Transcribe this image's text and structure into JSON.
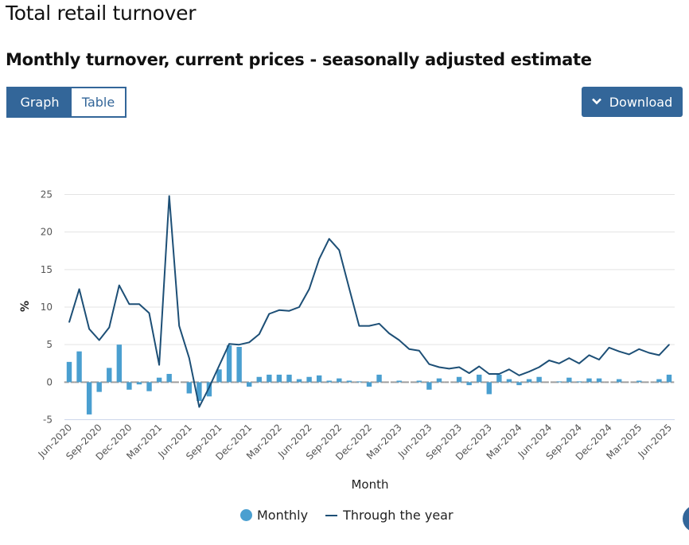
{
  "page": {
    "title": "Total retail turnover",
    "subtitle": "Monthly turnover, current prices - seasonally adjusted estimate"
  },
  "toggle": {
    "graph_label": "Graph",
    "table_label": "Table",
    "selected": "Graph"
  },
  "download": {
    "label": "Download",
    "icon": "chevron-down-icon"
  },
  "colors": {
    "brand": "#336699",
    "monthly": "#4a9fd0",
    "through_the_year": "#1d4f76",
    "zero_marker": "#9e9e9e",
    "grid": "#e3e3e3"
  },
  "chart_data": {
    "type": "bar",
    "title": "Monthly turnover, current prices - seasonally adjusted estimate",
    "xlabel": "Month",
    "ylabel": "%",
    "ylim": [
      -5,
      25
    ],
    "yticks": [
      "-5",
      "0",
      "5",
      "10",
      "15",
      "20",
      "25"
    ],
    "ytick_values": [
      -5,
      0,
      5,
      10,
      15,
      20,
      25
    ],
    "grid": true,
    "legend_position": "bottom",
    "xtick_labels": [
      "Jun-2020",
      "Sep-2020",
      "Dec-2020",
      "Mar-2021",
      "Jun-2021",
      "Sep-2021",
      "Dec-2021",
      "Mar-2022",
      "Jun-2022",
      "Sep-2022",
      "Dec-2022",
      "Mar-2023",
      "Jun-2023",
      "Sep-2023",
      "Dec-2023",
      "Mar-2024",
      "Jun-2024",
      "Sep-2024",
      "Dec-2024",
      "Mar-2025",
      "Jun-2025"
    ],
    "x": [
      "Jun-2020",
      "Jul-2020",
      "Aug-2020",
      "Sep-2020",
      "Oct-2020",
      "Nov-2020",
      "Dec-2020",
      "Jan-2021",
      "Feb-2021",
      "Mar-2021",
      "Apr-2021",
      "May-2021",
      "Jun-2021",
      "Jul-2021",
      "Aug-2021",
      "Sep-2021",
      "Oct-2021",
      "Nov-2021",
      "Dec-2021",
      "Jan-2022",
      "Feb-2022",
      "Mar-2022",
      "Apr-2022",
      "May-2022",
      "Jun-2022",
      "Jul-2022",
      "Aug-2022",
      "Sep-2022",
      "Oct-2022",
      "Nov-2022",
      "Dec-2022",
      "Jan-2023",
      "Feb-2023",
      "Mar-2023",
      "Apr-2023",
      "May-2023",
      "Jun-2023",
      "Jul-2023",
      "Aug-2023",
      "Sep-2023",
      "Oct-2023",
      "Nov-2023",
      "Dec-2023",
      "Jan-2024",
      "Feb-2024",
      "Mar-2024",
      "Apr-2024",
      "May-2024",
      "Jun-2024",
      "Jul-2024",
      "Aug-2024",
      "Sep-2024",
      "Oct-2024",
      "Nov-2024",
      "Dec-2024",
      "Jan-2025",
      "Feb-2025",
      "Mar-2025",
      "Apr-2025",
      "May-2025",
      "Jun-2025"
    ],
    "series": [
      {
        "name": "Monthly",
        "type": "bar",
        "values": [
          2.7,
          4.1,
          -4.3,
          -1.3,
          1.9,
          5.0,
          -1.0,
          -0.3,
          -1.2,
          0.6,
          1.1,
          0.0,
          -1.5,
          -2.5,
          -1.9,
          1.7,
          4.9,
          4.7,
          -0.6,
          0.7,
          1.0,
          1.0,
          1.0,
          0.4,
          0.7,
          0.9,
          0.2,
          0.5,
          0.2,
          0.1,
          -0.6,
          1.0,
          0.0,
          0.2,
          0.0,
          0.2,
          -1.0,
          0.5,
          null,
          0.7,
          -0.4,
          1.0,
          -1.6,
          1.0,
          0.4,
          -0.4,
          0.4,
          0.7,
          0.0,
          0.1,
          0.6,
          0.1,
          0.5,
          0.5,
          0.0,
          0.4,
          null,
          0.2,
          0.0,
          0.4,
          1.0
        ]
      },
      {
        "name": "Through the year",
        "type": "line",
        "values": [
          8.0,
          12.4,
          7.1,
          5.6,
          7.3,
          12.9,
          10.4,
          10.4,
          9.2,
          2.3,
          24.8,
          7.5,
          3.2,
          -3.3,
          -0.7,
          2.2,
          5.1,
          5.0,
          5.3,
          6.4,
          9.1,
          9.6,
          9.5,
          10.0,
          12.4,
          16.4,
          19.1,
          17.6,
          12.5,
          7.5,
          7.5,
          7.8,
          6.5,
          5.6,
          4.4,
          4.2,
          2.4,
          2.0,
          1.8,
          2.0,
          1.2,
          2.1,
          1.1,
          1.1,
          1.7,
          0.9,
          1.4,
          2.0,
          2.9,
          2.5,
          3.2,
          2.5,
          3.6,
          3.0,
          4.6,
          4.1,
          3.7,
          4.4,
          3.9,
          3.6,
          5.0
        ]
      }
    ]
  }
}
